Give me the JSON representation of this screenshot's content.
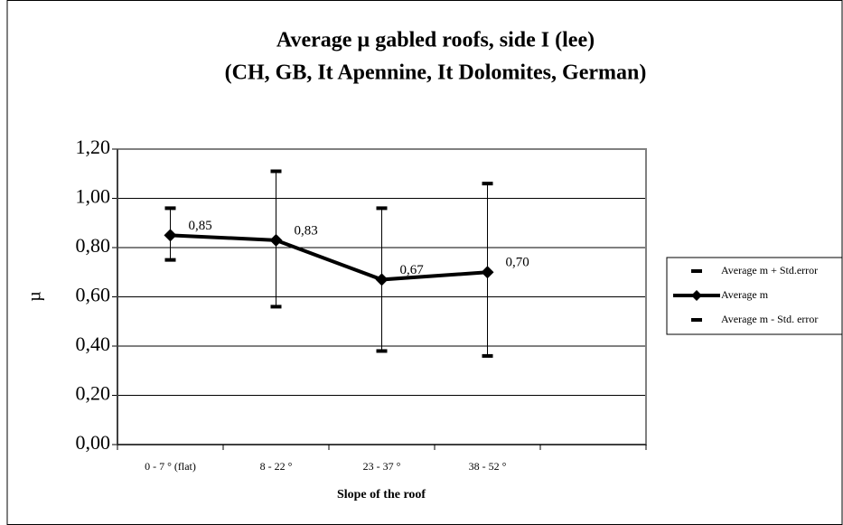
{
  "chart_data": {
    "type": "line",
    "title": [
      "Average µ gabled roofs, side I (lee)",
      "(CH, GB, It Apennine, It Dolomites, German)"
    ],
    "x_label": "Slope of the roof",
    "y_label": "µ",
    "categories": [
      "0 - 7 ° (flat)",
      "8 - 22 °",
      "23 - 37 °",
      "38 - 52 °",
      null
    ],
    "series": [
      {
        "name": "Average m + Std.error",
        "color": "#000000",
        "marker": "dash",
        "values": [
          0.96,
          1.11,
          0.96,
          1.06,
          null
        ]
      },
      {
        "name": "Average m",
        "color": "#000000",
        "marker": "diamond",
        "values": [
          0.85,
          0.83,
          0.67,
          0.7,
          null
        ],
        "value_labels": [
          "0,85",
          "0,83",
          "0,67",
          "0,70",
          null
        ]
      },
      {
        "name": "Average m - Std. error",
        "color": "#000000",
        "marker": "dash",
        "values": [
          0.75,
          0.56,
          0.38,
          0.36,
          null
        ]
      }
    ],
    "ylim": [
      0,
      1.2
    ],
    "yticks": [
      {
        "value": 0,
        "label": "0,00"
      },
      {
        "value": 0.2,
        "label": "0,20"
      },
      {
        "value": 0.4,
        "label": "0,40"
      },
      {
        "value": 0.6,
        "label": "0,60"
      },
      {
        "value": 0.8,
        "label": "0,80"
      },
      {
        "value": 1.0,
        "label": "1,00"
      },
      {
        "value": 1.2,
        "label": "1,20"
      }
    ],
    "grid": true,
    "legend": "right"
  }
}
